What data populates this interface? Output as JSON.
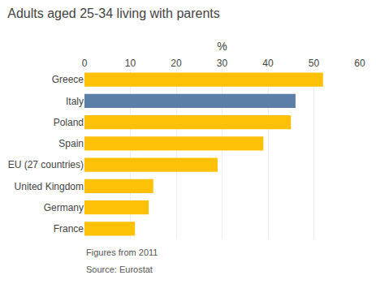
{
  "chart_data": {
    "type": "bar",
    "orientation": "horizontal",
    "title": "Adults aged 25-34 living with parents",
    "xlabel": "%",
    "categories": [
      "Greece",
      "Italy",
      "Poland",
      "Spain",
      "EU (27 countries)",
      "United Kingdom",
      "Germany",
      "France"
    ],
    "values": [
      52,
      46,
      45,
      39,
      29,
      15,
      14,
      11
    ],
    "colors": [
      "#FFC107",
      "#5b7fa6",
      "#FFC107",
      "#FFC107",
      "#FFC107",
      "#FFC107",
      "#FFC107",
      "#FFC107"
    ],
    "xlim": [
      0,
      60
    ],
    "xticks": [
      0,
      10,
      20,
      30,
      40,
      50,
      60
    ],
    "grid": true,
    "annotations": [
      "Figures from 2011",
      "Source: Eurostat"
    ]
  }
}
